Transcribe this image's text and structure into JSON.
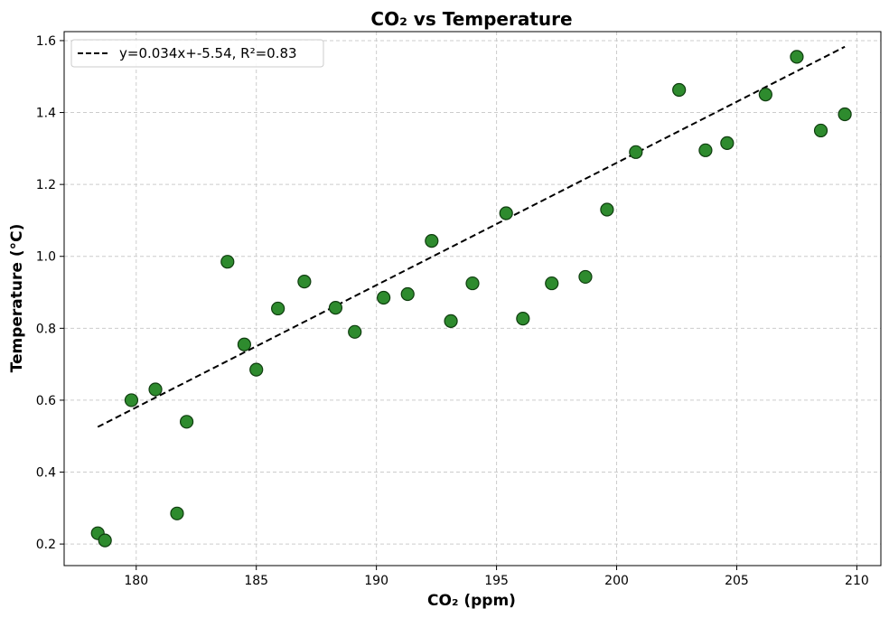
{
  "chart_data": {
    "type": "scatter",
    "title": "CO₂ vs Temperature",
    "xlabel": "CO₂ (ppm)",
    "ylabel": "Temperature (°C)",
    "xlim": [
      177,
      211
    ],
    "ylim": [
      0.14,
      1.625
    ],
    "xticks": [
      180,
      185,
      190,
      195,
      200,
      205,
      210
    ],
    "yticks": [
      0.2,
      0.4,
      0.6,
      0.8,
      1.0,
      1.2,
      1.4,
      1.6
    ],
    "grid": true,
    "legend_position": "top-left",
    "colors": {
      "points_fill": "#2e8b2e",
      "points_edge": "#0f3d0f",
      "trend_line": "#000000",
      "grid": "#cccccc"
    },
    "series": [
      {
        "type": "scatter",
        "points": [
          [
            178.4,
            0.23
          ],
          [
            178.7,
            0.21
          ],
          [
            179.8,
            0.6
          ],
          [
            180.8,
            0.63
          ],
          [
            181.7,
            0.285
          ],
          [
            182.1,
            0.54
          ],
          [
            183.8,
            0.985
          ],
          [
            184.5,
            0.755
          ],
          [
            185.0,
            0.685
          ],
          [
            185.9,
            0.855
          ],
          [
            187.0,
            0.93
          ],
          [
            188.3,
            0.857
          ],
          [
            189.1,
            0.79
          ],
          [
            190.3,
            0.885
          ],
          [
            191.3,
            0.895
          ],
          [
            192.3,
            1.043
          ],
          [
            193.1,
            0.82
          ],
          [
            194.0,
            0.925
          ],
          [
            195.4,
            1.12
          ],
          [
            196.1,
            0.827
          ],
          [
            197.3,
            0.925
          ],
          [
            198.7,
            0.943
          ],
          [
            199.6,
            1.13
          ],
          [
            200.8,
            1.29
          ],
          [
            202.6,
            1.463
          ],
          [
            203.7,
            1.295
          ],
          [
            204.6,
            1.315
          ],
          [
            206.2,
            1.45
          ],
          [
            207.5,
            1.555
          ],
          [
            208.5,
            1.35
          ],
          [
            209.5,
            1.395
          ]
        ]
      },
      {
        "type": "line",
        "name": "y=0.034x+-5.54, R²=0.83",
        "style": "dashed",
        "x_range": [
          178.4,
          209.5
        ],
        "slope": 0.034,
        "intercept": -5.54
      }
    ]
  }
}
